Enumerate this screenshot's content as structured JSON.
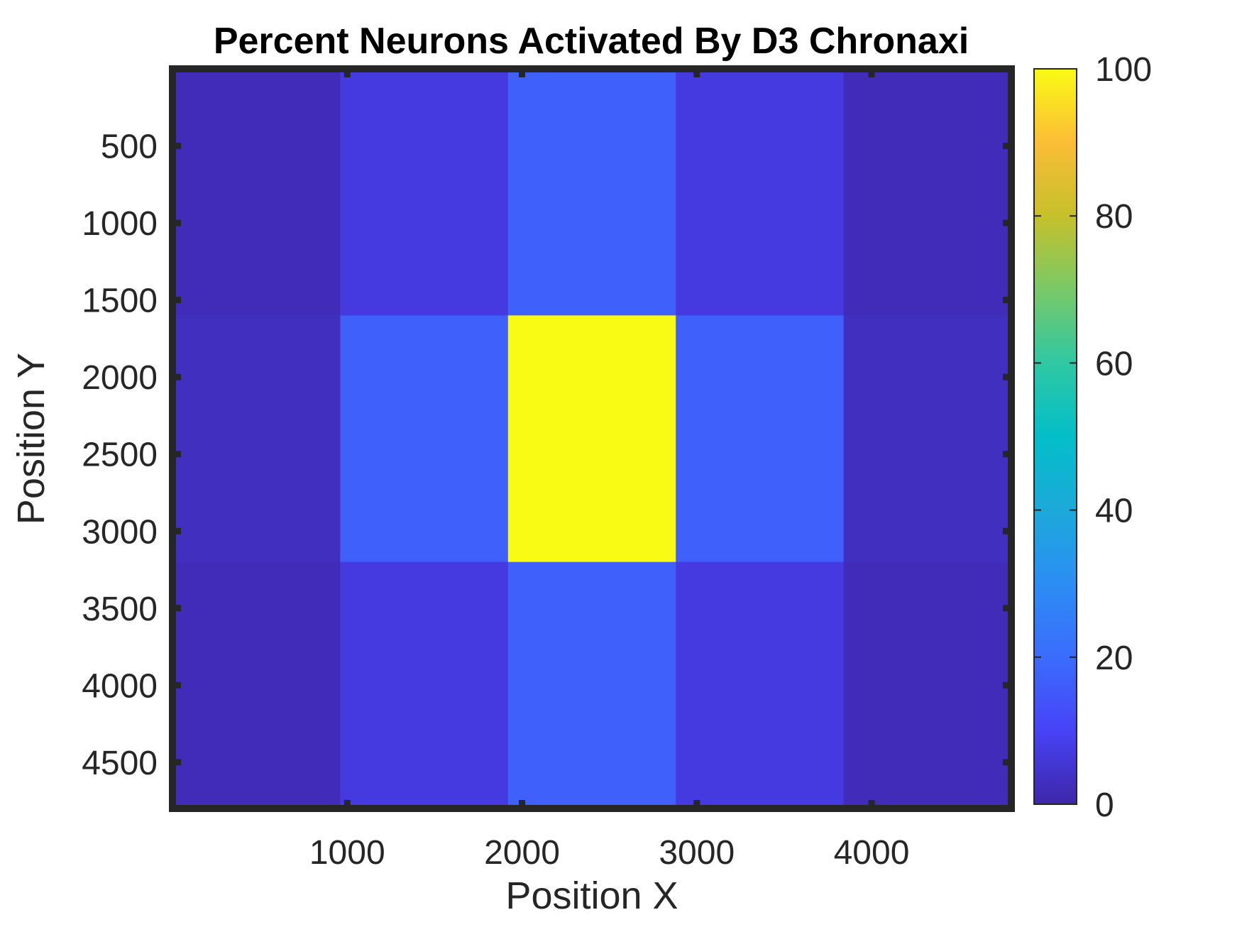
{
  "chart_data": {
    "type": "heatmap",
    "title": "Percent Neurons Activated By D3 Chronaxi",
    "xlabel": "Position X",
    "ylabel": "Position Y",
    "xlim": [
      0,
      4800
    ],
    "ylim": [
      0,
      4800
    ],
    "y_reversed": true,
    "x_ticks": [
      1000,
      2000,
      3000,
      4000
    ],
    "y_ticks": [
      500,
      1000,
      1500,
      2000,
      2500,
      3000,
      3500,
      4000,
      4500
    ],
    "x_tick_labels": [
      "1000",
      "2000",
      "3000",
      "4000"
    ],
    "y_tick_labels": [
      "500",
      "1000",
      "1500",
      "2000",
      "2500",
      "3000",
      "3500",
      "4000",
      "4500"
    ],
    "x_edges": [
      0,
      960,
      1920,
      2880,
      3840,
      4800
    ],
    "y_edges": [
      0,
      1600,
      3200,
      4800
    ],
    "values": [
      [
        2,
        7,
        17,
        7,
        2
      ],
      [
        3,
        17,
        100,
        17,
        3
      ],
      [
        2,
        7,
        17,
        7,
        2
      ]
    ],
    "colorbar": {
      "range": [
        0,
        100
      ],
      "ticks": [
        0,
        20,
        40,
        60,
        80,
        100
      ],
      "tick_labels": [
        "0",
        "20",
        "40",
        "60",
        "80",
        "100"
      ],
      "colormap": "parula"
    },
    "grid": false,
    "legend": "none"
  }
}
